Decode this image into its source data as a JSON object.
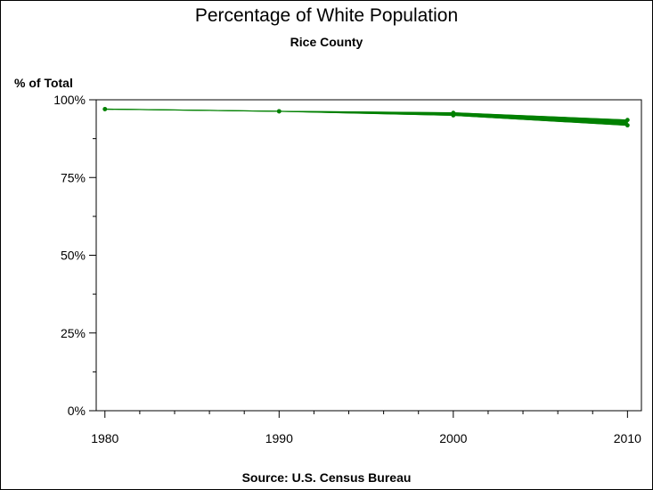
{
  "chart_data": {
    "type": "line",
    "title": "Percentage of White Population",
    "subtitle": "Rice County",
    "ylabel": "% of Total",
    "xlabel": "",
    "footnote": "Source: U.S. Census Bureau",
    "xlim": [
      1979.5,
      2010.8
    ],
    "ylim": [
      0,
      100
    ],
    "x_ticks": [
      1980,
      1990,
      2000,
      2010
    ],
    "x_tick_labels": [
      "1980",
      "1990",
      "2000",
      "2010"
    ],
    "y_ticks": [
      0,
      25,
      50,
      75,
      100
    ],
    "y_tick_labels": [
      "0%",
      "25%",
      "50%",
      "75%",
      "100%"
    ],
    "grid": false,
    "line_color": "#008000",
    "series": [
      {
        "x": [
          1980,
          1990,
          2000,
          2010
        ],
        "values": [
          97.0,
          96.3,
          95.8,
          93.5
        ]
      },
      {
        "x": [
          1980,
          1990,
          2000,
          2010
        ],
        "values": [
          97.0,
          96.3,
          95.0,
          91.8
        ]
      }
    ]
  }
}
